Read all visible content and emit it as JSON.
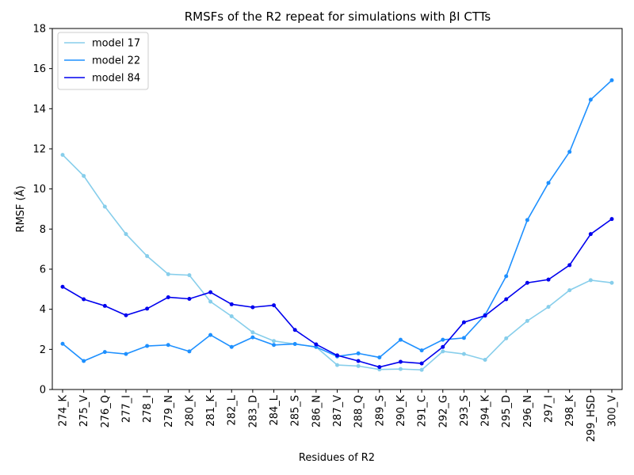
{
  "chart_data": {
    "type": "line",
    "title": "RMSFs of the R2 repeat for simulations with βI CTTs",
    "xlabel": "Residues of R2",
    "ylabel": "RMSF (Å)",
    "ylim": [
      0,
      18
    ],
    "yticks": [
      0,
      2,
      4,
      6,
      8,
      10,
      12,
      14,
      16,
      18
    ],
    "grid": false,
    "legend_position": "top-left",
    "categories": [
      "274_K",
      "275_V",
      "276_Q",
      "277_I",
      "278_I",
      "279_N",
      "280_K",
      "281_K",
      "282_L",
      "283_D",
      "284_L",
      "285_S",
      "286_N",
      "287_V",
      "288_Q",
      "289_S",
      "290_K",
      "291_C",
      "292_G",
      "293_S",
      "294_K",
      "295_D",
      "296_N",
      "297_I",
      "298_K",
      "299_HSD",
      "300_V"
    ],
    "highlighted_categories": [
      "285_S",
      "289_S",
      "293_S"
    ],
    "highlight_color": "#008000",
    "series": [
      {
        "name": "model 17",
        "color": "#87ceeb",
        "values": [
          11.7,
          10.65,
          9.12,
          7.75,
          6.65,
          5.75,
          5.7,
          4.38,
          3.65,
          2.85,
          2.42,
          2.27,
          2.12,
          1.22,
          1.17,
          1.0,
          1.02,
          0.98,
          1.9,
          1.77,
          1.48,
          2.55,
          3.42,
          4.12,
          4.95,
          5.45,
          5.32
        ]
      },
      {
        "name": "model 22",
        "color": "#1e90ff",
        "values": [
          2.28,
          1.42,
          1.87,
          1.77,
          2.17,
          2.22,
          1.9,
          2.72,
          2.12,
          2.6,
          2.22,
          2.27,
          2.12,
          1.65,
          1.8,
          1.6,
          2.48,
          1.95,
          2.48,
          2.57,
          3.72,
          5.65,
          8.45,
          10.3,
          11.85,
          14.45,
          15.42
        ]
      },
      {
        "name": "model 84",
        "color": "#0000ee",
        "values": [
          5.12,
          4.5,
          4.17,
          3.7,
          4.03,
          4.6,
          4.52,
          4.85,
          4.25,
          4.1,
          4.2,
          2.97,
          2.25,
          1.7,
          1.42,
          1.12,
          1.38,
          1.3,
          2.12,
          3.35,
          3.68,
          4.5,
          5.32,
          5.48,
          6.2,
          7.75,
          8.5
        ]
      }
    ]
  }
}
